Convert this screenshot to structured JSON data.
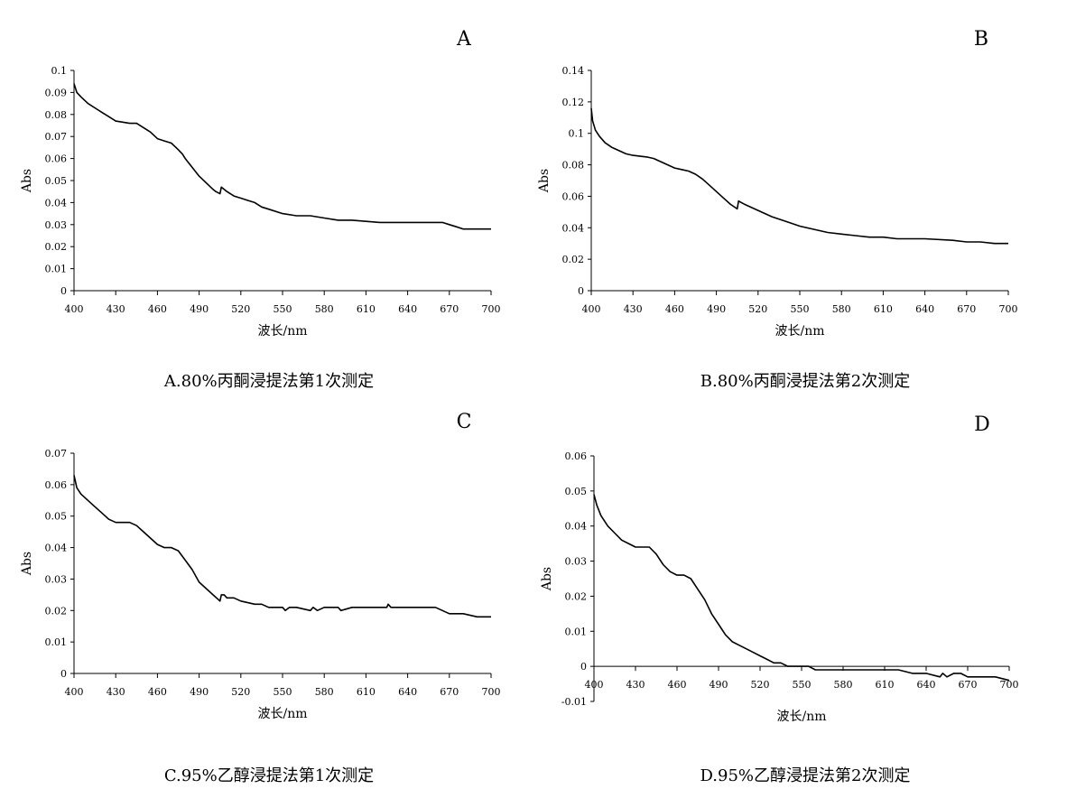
{
  "chart_data": [
    {
      "type": "line",
      "panel_label": "A",
      "caption": "A.80%丙酮浸提法第1次测定",
      "xlabel": "波长/nm",
      "ylabel": "Abs",
      "xlim": [
        400,
        700
      ],
      "ylim": [
        0,
        0.1
      ],
      "xticks": [
        "400",
        "430",
        "460",
        "490",
        "520",
        "550",
        "580",
        "610",
        "640",
        "670",
        "700"
      ],
      "yticks": [
        "0",
        "0.01",
        "0.02",
        "0.03",
        "0.04",
        "0.05",
        "0.06",
        "0.07",
        "0.08",
        "0.09",
        "0.1"
      ],
      "series": [
        {
          "x": [
            400,
            402,
            405,
            410,
            415,
            420,
            425,
            430,
            440,
            445,
            450,
            455,
            460,
            465,
            470,
            475,
            478,
            480,
            485,
            490,
            495,
            500,
            502,
            505,
            506,
            508,
            510,
            515,
            520,
            525,
            530,
            535,
            540,
            550,
            560,
            570,
            580,
            590,
            600,
            620,
            640,
            655,
            660,
            665,
            670,
            675,
            680,
            690,
            700
          ],
          "y": [
            0.094,
            0.09,
            0.088,
            0.085,
            0.083,
            0.081,
            0.079,
            0.077,
            0.076,
            0.076,
            0.074,
            0.072,
            0.069,
            0.068,
            0.067,
            0.064,
            0.062,
            0.06,
            0.056,
            0.052,
            0.049,
            0.046,
            0.045,
            0.044,
            0.047,
            0.046,
            0.045,
            0.043,
            0.042,
            0.041,
            0.04,
            0.038,
            0.037,
            0.035,
            0.034,
            0.034,
            0.033,
            0.032,
            0.032,
            0.031,
            0.031,
            0.031,
            0.031,
            0.031,
            0.03,
            0.029,
            0.028,
            0.028,
            0.028
          ]
        }
      ]
    },
    {
      "type": "line",
      "panel_label": "B",
      "caption": "B.80%丙酮浸提法第2次测定",
      "xlabel": "波长/nm",
      "ylabel": "Abs",
      "xlim": [
        400,
        700
      ],
      "ylim": [
        0,
        0.14
      ],
      "xticks": [
        "400",
        "430",
        "460",
        "490",
        "520",
        "550",
        "580",
        "610",
        "640",
        "670",
        "700"
      ],
      "yticks": [
        "0",
        "0.02",
        "0.04",
        "0.06",
        "0.08",
        "0.1",
        "0.12",
        "0.14"
      ],
      "series": [
        {
          "x": [
            400,
            401,
            403,
            406,
            410,
            415,
            420,
            425,
            430,
            440,
            445,
            450,
            455,
            460,
            465,
            470,
            475,
            480,
            485,
            490,
            495,
            500,
            505,
            506,
            508,
            510,
            515,
            520,
            525,
            530,
            540,
            550,
            560,
            570,
            580,
            590,
            600,
            610,
            620,
            640,
            660,
            670,
            680,
            690,
            700
          ],
          "y": [
            0.116,
            0.108,
            0.102,
            0.098,
            0.094,
            0.091,
            0.089,
            0.087,
            0.086,
            0.085,
            0.084,
            0.082,
            0.08,
            0.078,
            0.077,
            0.076,
            0.074,
            0.071,
            0.067,
            0.063,
            0.059,
            0.055,
            0.052,
            0.057,
            0.056,
            0.055,
            0.053,
            0.051,
            0.049,
            0.047,
            0.044,
            0.041,
            0.039,
            0.037,
            0.036,
            0.035,
            0.034,
            0.034,
            0.033,
            0.033,
            0.032,
            0.031,
            0.031,
            0.03,
            0.03
          ]
        }
      ]
    },
    {
      "type": "line",
      "panel_label": "C",
      "caption": "C.95%乙醇浸提法第1次测定",
      "xlabel": "波长/nm",
      "ylabel": "Abs",
      "xlim": [
        400,
        700
      ],
      "ylim": [
        0,
        0.07
      ],
      "xticks": [
        "400",
        "430",
        "460",
        "490",
        "520",
        "550",
        "580",
        "610",
        "640",
        "670",
        "700"
      ],
      "yticks": [
        "0",
        "0.01",
        "0.02",
        "0.03",
        "0.04",
        "0.05",
        "0.06",
        "0.07"
      ],
      "series": [
        {
          "x": [
            400,
            402,
            405,
            410,
            415,
            420,
            425,
            430,
            440,
            445,
            450,
            455,
            460,
            465,
            470,
            475,
            480,
            485,
            490,
            495,
            500,
            505,
            506,
            508,
            510,
            515,
            520,
            530,
            535,
            540,
            550,
            552,
            555,
            560,
            570,
            572,
            575,
            580,
            590,
            592,
            600,
            610,
            620,
            625,
            626,
            628,
            630,
            640,
            660,
            665,
            670,
            680,
            690,
            700
          ],
          "y": [
            0.063,
            0.059,
            0.057,
            0.055,
            0.053,
            0.051,
            0.049,
            0.048,
            0.048,
            0.047,
            0.045,
            0.043,
            0.041,
            0.04,
            0.04,
            0.039,
            0.036,
            0.033,
            0.029,
            0.027,
            0.025,
            0.023,
            0.025,
            0.025,
            0.024,
            0.024,
            0.023,
            0.022,
            0.022,
            0.021,
            0.021,
            0.02,
            0.021,
            0.021,
            0.02,
            0.021,
            0.02,
            0.021,
            0.021,
            0.02,
            0.021,
            0.021,
            0.021,
            0.021,
            0.022,
            0.021,
            0.021,
            0.021,
            0.021,
            0.02,
            0.019,
            0.019,
            0.018,
            0.018
          ]
        }
      ]
    },
    {
      "type": "line",
      "panel_label": "D",
      "caption": "D.95%乙醇浸提法第2次测定",
      "xlabel": "波长/nm",
      "ylabel": "Abs",
      "xlim": [
        400,
        700
      ],
      "ylim": [
        -0.01,
        0.06
      ],
      "xticks": [
        "400",
        "430",
        "460",
        "490",
        "520",
        "550",
        "580",
        "610",
        "640",
        "670",
        "700"
      ],
      "yticks": [
        "-0.01",
        "0",
        "0.01",
        "0.02",
        "0.03",
        "0.04",
        "0.05",
        "0.06"
      ],
      "series": [
        {
          "x": [
            400,
            402,
            405,
            410,
            415,
            420,
            425,
            430,
            440,
            445,
            450,
            455,
            460,
            465,
            470,
            475,
            480,
            485,
            490,
            495,
            500,
            505,
            510,
            515,
            520,
            525,
            530,
            535,
            540,
            545,
            550,
            555,
            560,
            570,
            580,
            600,
            620,
            630,
            640,
            650,
            652,
            655,
            660,
            665,
            670,
            680,
            690,
            700
          ],
          "y": [
            0.049,
            0.046,
            0.043,
            0.04,
            0.038,
            0.036,
            0.035,
            0.034,
            0.034,
            0.032,
            0.029,
            0.027,
            0.026,
            0.026,
            0.025,
            0.022,
            0.019,
            0.015,
            0.012,
            0.009,
            0.007,
            0.006,
            0.005,
            0.004,
            0.003,
            0.002,
            0.001,
            0.001,
            0.0,
            0.0,
            0.0,
            0.0,
            -0.001,
            -0.001,
            -0.001,
            -0.001,
            -0.001,
            -0.002,
            -0.002,
            -0.003,
            -0.002,
            -0.003,
            -0.002,
            -0.002,
            -0.003,
            -0.003,
            -0.003,
            -0.004
          ]
        }
      ]
    }
  ]
}
